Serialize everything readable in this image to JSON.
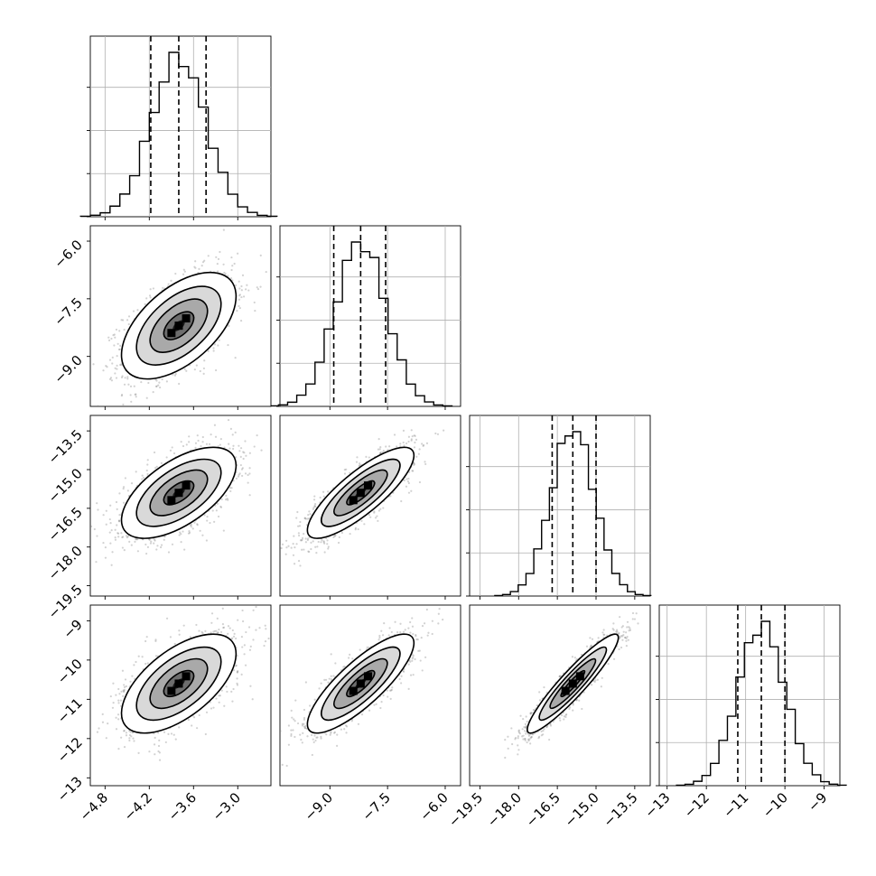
{
  "chart_data": {
    "type": "corner",
    "parameters": [
      {
        "median": -3.8,
        "q16": -4.18,
        "q84": -3.43,
        "sigma": 0.37,
        "xlim": [
          -5.0,
          -2.55
        ],
        "ticks": [
          -4.8,
          -4.2,
          -3.6,
          -3.0
        ],
        "tick_labels": [
          "−4.8",
          "−4.2",
          "−3.6",
          "−3.0"
        ]
      },
      {
        "median": -8.2,
        "q16": -8.9,
        "q84": -7.55,
        "sigma": 0.66,
        "xlim": [
          -10.3,
          -5.6
        ],
        "ticks": [
          -9.0,
          -7.5,
          -6.0
        ],
        "tick_labels": [
          "−9.0",
          "−7.5",
          "−6.0"
        ]
      },
      {
        "median": -15.9,
        "q16": -16.7,
        "q84": -15.0,
        "sigma": 0.84,
        "xlim": [
          -19.9,
          -12.9
        ],
        "ticks": [
          -19.5,
          -18.0,
          -16.5,
          -15.0,
          -13.5
        ],
        "tick_labels": [
          "−19.5",
          "−18.0",
          "−16.5",
          "−15.0",
          "−13.5"
        ]
      },
      {
        "median": -10.6,
        "q16": -11.2,
        "q84": -10.0,
        "sigma": 0.6,
        "xlim": [
          -13.2,
          -8.6
        ],
        "ticks": [
          -13,
          -12,
          -11,
          -10,
          -9
        ],
        "tick_labels": [
          "−13",
          "−12",
          "−11",
          "−10",
          "−9"
        ]
      }
    ],
    "correlations": {
      "0-1": 0.55,
      "0-2": 0.6,
      "1-2": 0.82,
      "0-3": 0.6,
      "1-3": 0.82,
      "2-3": 0.93
    },
    "quantiles": [
      0.16,
      0.5,
      0.84
    ],
    "histogram_bins": 20,
    "grid": true,
    "colors": {
      "line": "#000000",
      "grid": "#b0b0b0",
      "points": "#7f7f7f"
    }
  }
}
